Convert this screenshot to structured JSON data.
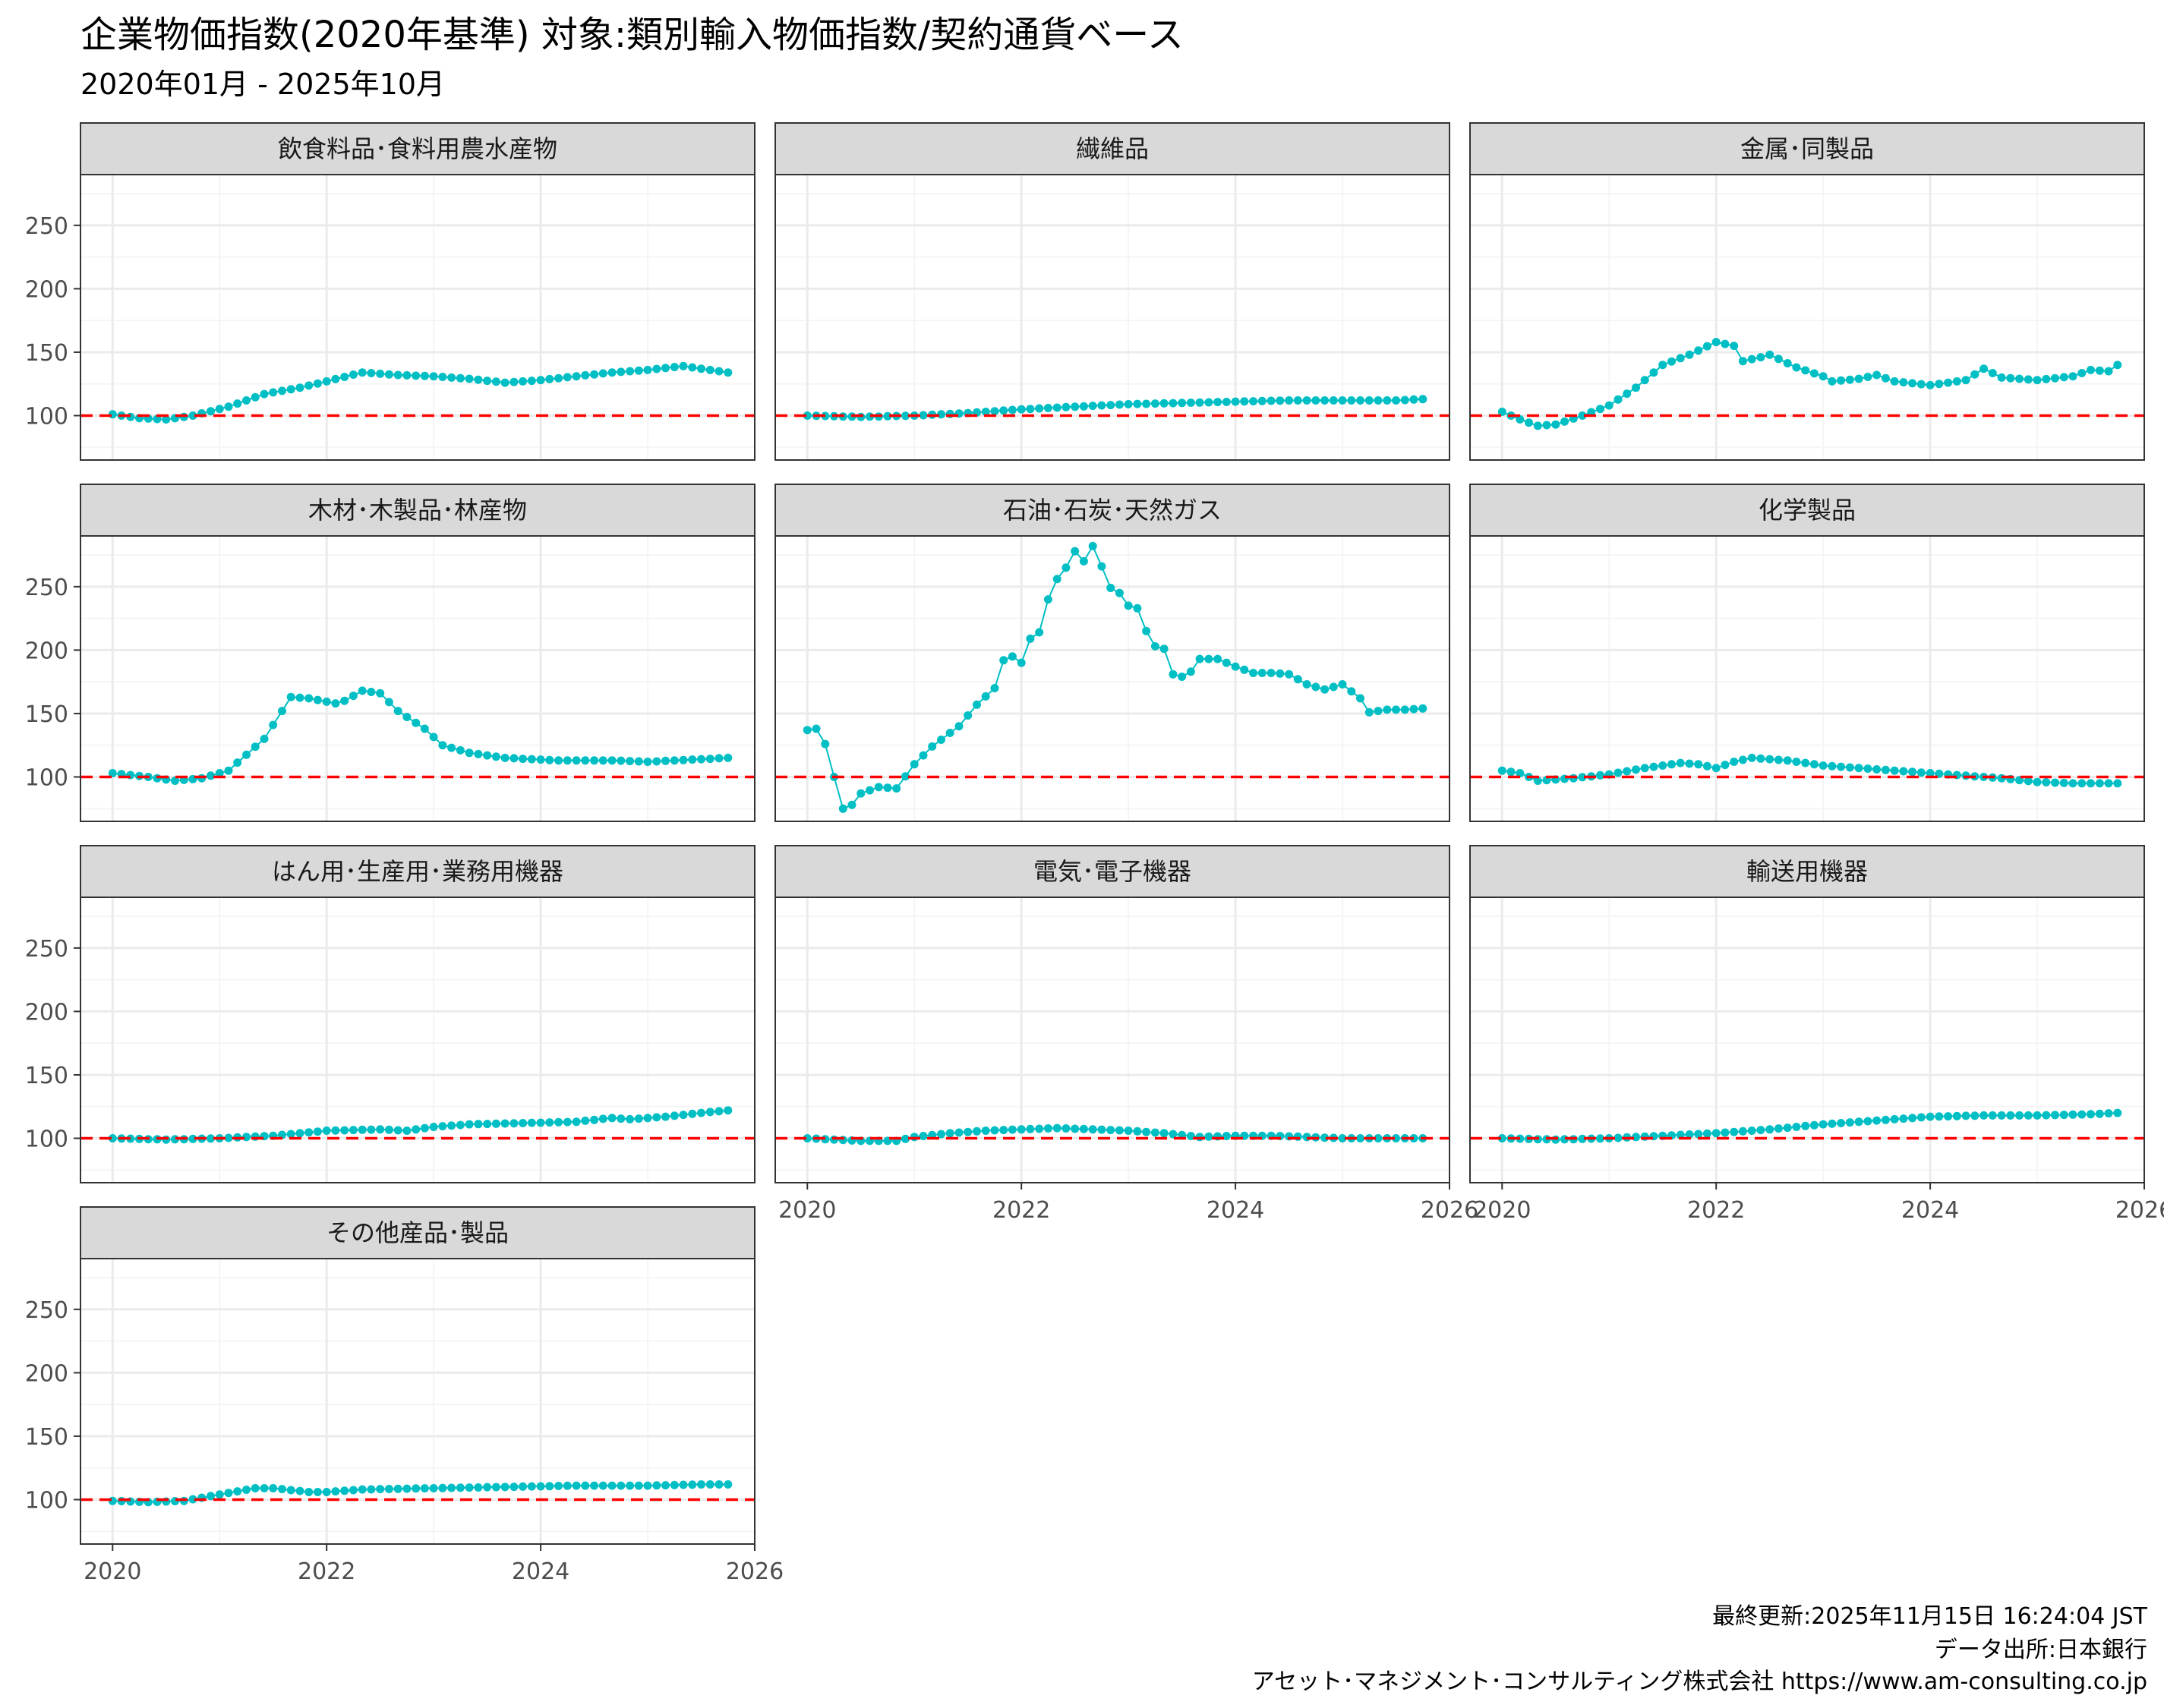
{
  "title": "企業物価指数(2020年基準) 対象:類別輸入物価指数/契約通貨ベース",
  "subtitle": "2020年01月 - 2025年10月",
  "caption": [
    "最終更新:2025年11月15日 16:24:04 JST",
    "データ出所:日本銀行",
    "アセット･マネジメント･コンサルティング株式会社 https://www.am-consulting.co.jp"
  ],
  "colors": {
    "series": "#00BFC4",
    "reference": "#FF0000",
    "strip": "#D9D9D9",
    "panel_border": "#333333",
    "grid_major": "#EBEBEB",
    "grid_minor": "#F5F5F5"
  },
  "chart_data": {
    "type": "line",
    "facet": "wrap",
    "ncol": 3,
    "reference_line": 100,
    "x_start": "2020-01",
    "n_months": 70,
    "xlim": [
      2019.7,
      2026.0
    ],
    "ylim": [
      65,
      290
    ],
    "x_ticks": [
      2020,
      2022,
      2024,
      2026
    ],
    "y_ticks": [
      100,
      150,
      200,
      250
    ],
    "panels": [
      {
        "name": "飲食料品･食料用農水産物",
        "anchors": [
          [
            0,
            101
          ],
          [
            3,
            98
          ],
          [
            6,
            97
          ],
          [
            9,
            100
          ],
          [
            13,
            107
          ],
          [
            17,
            117
          ],
          [
            21,
            122
          ],
          [
            24,
            127
          ],
          [
            28,
            134
          ],
          [
            32,
            132
          ],
          [
            36,
            131
          ],
          [
            40,
            129
          ],
          [
            44,
            126
          ],
          [
            48,
            128
          ],
          [
            52,
            131
          ],
          [
            56,
            134
          ],
          [
            60,
            136
          ],
          [
            64,
            139
          ],
          [
            66,
            137
          ],
          [
            69,
            134
          ]
        ]
      },
      {
        "name": "繊維品",
        "anchors": [
          [
            0,
            100
          ],
          [
            6,
            99
          ],
          [
            12,
            100
          ],
          [
            18,
            102
          ],
          [
            24,
            105
          ],
          [
            30,
            107
          ],
          [
            36,
            109
          ],
          [
            42,
            110
          ],
          [
            48,
            111
          ],
          [
            54,
            112
          ],
          [
            60,
            112
          ],
          [
            66,
            112
          ],
          [
            69,
            113
          ]
        ]
      },
      {
        "name": "金属･同製品",
        "anchors": [
          [
            0,
            103
          ],
          [
            2,
            97
          ],
          [
            4,
            92
          ],
          [
            6,
            93
          ],
          [
            9,
            100
          ],
          [
            12,
            108
          ],
          [
            15,
            122
          ],
          [
            18,
            140
          ],
          [
            21,
            148
          ],
          [
            24,
            158
          ],
          [
            26,
            155
          ],
          [
            27,
            143
          ],
          [
            29,
            146
          ],
          [
            30,
            148
          ],
          [
            33,
            138
          ],
          [
            36,
            131
          ],
          [
            37,
            127
          ],
          [
            40,
            129
          ],
          [
            42,
            132
          ],
          [
            44,
            127
          ],
          [
            48,
            124
          ],
          [
            52,
            128
          ],
          [
            54,
            137
          ],
          [
            56,
            130
          ],
          [
            60,
            128
          ],
          [
            64,
            131
          ],
          [
            66,
            136
          ],
          [
            68,
            135
          ],
          [
            69,
            140
          ]
        ]
      },
      {
        "name": "木材･木製品･林産物",
        "anchors": [
          [
            0,
            103
          ],
          [
            4,
            100
          ],
          [
            7,
            97
          ],
          [
            10,
            99
          ],
          [
            13,
            105
          ],
          [
            17,
            130
          ],
          [
            20,
            163
          ],
          [
            22,
            162
          ],
          [
            25,
            158
          ],
          [
            26,
            160
          ],
          [
            28,
            168
          ],
          [
            30,
            166
          ],
          [
            32,
            152
          ],
          [
            35,
            138
          ],
          [
            37,
            125
          ],
          [
            40,
            119
          ],
          [
            44,
            115
          ],
          [
            50,
            113
          ],
          [
            56,
            113
          ],
          [
            60,
            112
          ],
          [
            66,
            114
          ],
          [
            69,
            115
          ]
        ]
      },
      {
        "name": "石油･石炭･天然ガス",
        "anchors": [
          [
            0,
            137
          ],
          [
            1,
            138
          ],
          [
            2,
            126
          ],
          [
            3,
            100
          ],
          [
            4,
            75
          ],
          [
            5,
            78
          ],
          [
            6,
            87
          ],
          [
            8,
            92
          ],
          [
            10,
            91
          ],
          [
            12,
            110
          ],
          [
            14,
            124
          ],
          [
            17,
            140
          ],
          [
            19,
            157
          ],
          [
            21,
            170
          ],
          [
            22,
            192
          ],
          [
            23,
            195
          ],
          [
            24,
            190
          ],
          [
            25,
            209
          ],
          [
            26,
            214
          ],
          [
            27,
            240
          ],
          [
            28,
            256
          ],
          [
            29,
            265
          ],
          [
            30,
            278
          ],
          [
            31,
            270
          ],
          [
            32,
            282
          ],
          [
            33,
            266
          ],
          [
            34,
            249
          ],
          [
            35,
            245
          ],
          [
            36,
            235
          ],
          [
            37,
            233
          ],
          [
            38,
            215
          ],
          [
            39,
            203
          ],
          [
            40,
            201
          ],
          [
            41,
            181
          ],
          [
            42,
            179
          ],
          [
            43,
            183
          ],
          [
            44,
            193
          ],
          [
            46,
            193
          ],
          [
            48,
            187
          ],
          [
            50,
            182
          ],
          [
            52,
            182
          ],
          [
            54,
            181
          ],
          [
            56,
            173
          ],
          [
            58,
            169
          ],
          [
            60,
            173
          ],
          [
            62,
            162
          ],
          [
            63,
            151
          ],
          [
            65,
            153
          ],
          [
            67,
            153
          ],
          [
            69,
            154
          ]
        ]
      },
      {
        "name": "化学製品",
        "anchors": [
          [
            0,
            105
          ],
          [
            2,
            103
          ],
          [
            4,
            97
          ],
          [
            8,
            99
          ],
          [
            12,
            102
          ],
          [
            16,
            107
          ],
          [
            20,
            111
          ],
          [
            22,
            110
          ],
          [
            24,
            107
          ],
          [
            26,
            112
          ],
          [
            28,
            115
          ],
          [
            32,
            113
          ],
          [
            36,
            109
          ],
          [
            40,
            107
          ],
          [
            44,
            105
          ],
          [
            48,
            103
          ],
          [
            52,
            101
          ],
          [
            56,
            99
          ],
          [
            60,
            96
          ],
          [
            64,
            95
          ],
          [
            69,
            95
          ]
        ]
      },
      {
        "name": "はん用･生産用･業務用機器",
        "anchors": [
          [
            0,
            100
          ],
          [
            6,
            99
          ],
          [
            12,
            100
          ],
          [
            18,
            102
          ],
          [
            24,
            106
          ],
          [
            30,
            107
          ],
          [
            33,
            106
          ],
          [
            36,
            109
          ],
          [
            40,
            111
          ],
          [
            46,
            112
          ],
          [
            52,
            113
          ],
          [
            56,
            116
          ],
          [
            58,
            115
          ],
          [
            62,
            117
          ],
          [
            66,
            120
          ],
          [
            69,
            122
          ]
        ]
      },
      {
        "name": "電気･電子機器",
        "anchors": [
          [
            0,
            100
          ],
          [
            6,
            98
          ],
          [
            10,
            98
          ],
          [
            12,
            101
          ],
          [
            16,
            104
          ],
          [
            20,
            106
          ],
          [
            24,
            107
          ],
          [
            28,
            108
          ],
          [
            32,
            107
          ],
          [
            36,
            106
          ],
          [
            40,
            104
          ],
          [
            44,
            101
          ],
          [
            48,
            102
          ],
          [
            52,
            102
          ],
          [
            56,
            101
          ],
          [
            60,
            100
          ],
          [
            64,
            100
          ],
          [
            69,
            100
          ]
        ]
      },
      {
        "name": "輸送用機器",
        "anchors": [
          [
            0,
            100
          ],
          [
            6,
            99
          ],
          [
            12,
            100
          ],
          [
            18,
            102
          ],
          [
            24,
            104
          ],
          [
            30,
            107
          ],
          [
            36,
            111
          ],
          [
            42,
            114
          ],
          [
            48,
            117
          ],
          [
            54,
            118
          ],
          [
            60,
            118
          ],
          [
            66,
            119
          ],
          [
            69,
            120
          ]
        ]
      },
      {
        "name": "その他産品･製品",
        "anchors": [
          [
            0,
            99
          ],
          [
            4,
            98
          ],
          [
            8,
            99
          ],
          [
            12,
            104
          ],
          [
            16,
            109
          ],
          [
            18,
            109
          ],
          [
            22,
            106
          ],
          [
            24,
            106
          ],
          [
            28,
            108
          ],
          [
            36,
            109
          ],
          [
            44,
            110
          ],
          [
            52,
            111
          ],
          [
            60,
            111
          ],
          [
            66,
            112
          ],
          [
            69,
            112
          ]
        ]
      }
    ]
  }
}
